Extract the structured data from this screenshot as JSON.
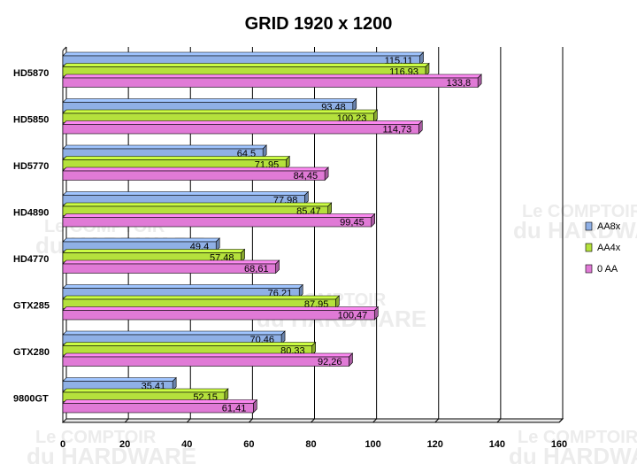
{
  "chart_data": {
    "type": "bar",
    "orientation": "horizontal",
    "title": "GRID 1920 x 1200",
    "categories": [
      "HD5870",
      "HD5850",
      "HD5770",
      "HD4890",
      "HD4770",
      "GTX285",
      "GTX280",
      "9800GT"
    ],
    "series": [
      {
        "name": "AA8x",
        "color": "#8fb0e6",
        "values": [
          115.11,
          93.48,
          64.5,
          77.98,
          49.4,
          76.21,
          70.46,
          35.41
        ],
        "labels": [
          "115,11",
          "93,48",
          "64,5",
          "77,98",
          "49,4",
          "76,21",
          "70,46",
          "35,41"
        ]
      },
      {
        "name": "AA4x",
        "color": "#b5e13c",
        "values": [
          116.93,
          100.23,
          71.95,
          85.47,
          57.48,
          87.95,
          80.33,
          52.15
        ],
        "labels": [
          "116,93",
          "100,23",
          "71,95",
          "85,47",
          "57,48",
          "87,95",
          "80,33",
          "52,15"
        ]
      },
      {
        "name": "0 AA",
        "color": "#e07ad6",
        "values": [
          133.8,
          114.73,
          84.45,
          99.45,
          68.61,
          100.47,
          92.26,
          61.41
        ],
        "labels": [
          "133,8",
          "114,73",
          "84,45",
          "99,45",
          "68,61",
          "100,47",
          "92,26",
          "61,41"
        ]
      }
    ],
    "xlim": [
      0,
      160
    ],
    "xticks": [
      "0",
      "20",
      "40",
      "60",
      "80",
      "100",
      "120",
      "140",
      "160"
    ],
    "grid": true,
    "legend": "right"
  },
  "watermark": {
    "line1": "Le COMPTOIR",
    "line2": "du HARDWARE"
  }
}
